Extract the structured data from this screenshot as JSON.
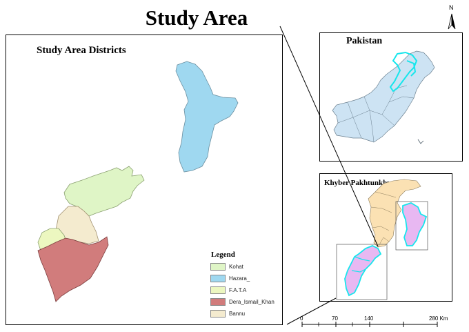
{
  "map": {
    "title": "Study Area",
    "main_panel_title": "Study Area Districts",
    "inset_pakistan_title": "Pakistan",
    "inset_kp_title": "Khyber Pakhtunkhwa",
    "north_label": "N"
  },
  "legend": {
    "title": "Legend",
    "items": [
      {
        "label": "Kohat",
        "color": "#dff5c6"
      },
      {
        "label": "Hazara_",
        "color": "#9fd8f0"
      },
      {
        "label": "F.A.T.A",
        "color": "#ecf7c0"
      },
      {
        "label": "Dera_Ismail_Khan",
        "color": "#d17c7c"
      },
      {
        "label": "Bannu",
        "color": "#f4ebcf"
      }
    ]
  },
  "colors": {
    "pakistan_fill": "#cde3f3",
    "highlight_outline": "#16e6ec",
    "kp_fill": "#fbe1b3",
    "study_fill_kp": "#e8b8f2"
  },
  "scale_bar": {
    "ticks": [
      "0",
      "70",
      "140",
      "280 Km"
    ]
  }
}
